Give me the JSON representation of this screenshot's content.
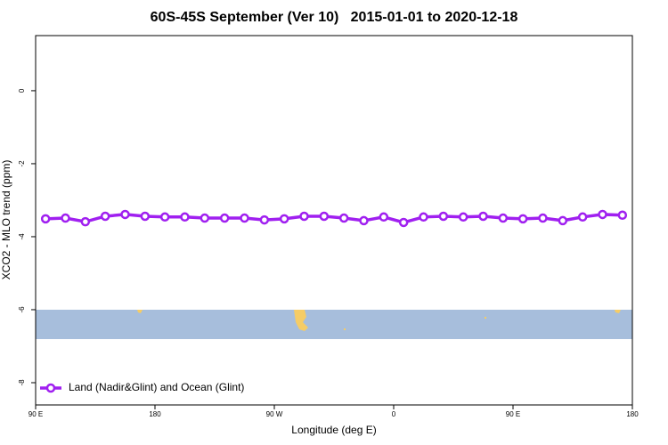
{
  "chart_data": {
    "type": "line",
    "title": "60S-45S September (Ver 10)   2015-01-01 to 2020-12-18",
    "xlabel": "Longitude (deg E)",
    "ylabel": "XCO2 - MLO trend (ppm)",
    "xlim": [
      90,
      540
    ],
    "xticks": [
      {
        "value": 90,
        "label": "90 E"
      },
      {
        "value": 180,
        "label": "180"
      },
      {
        "value": 270,
        "label": "90 W"
      },
      {
        "value": 360,
        "label": "0"
      },
      {
        "value": 450,
        "label": "90 E"
      },
      {
        "value": 540,
        "label": "180"
      }
    ],
    "ylim": [
      -8.61,
      1.51
    ],
    "yticks": [
      0,
      -2,
      -4,
      -6,
      -8
    ],
    "legend": "bottom-left",
    "x": [
      97.5,
      112.5,
      127.5,
      142.5,
      157.5,
      172.5,
      187.5,
      202.5,
      217.5,
      232.5,
      247.5,
      262.5,
      277.5,
      292.5,
      307.5,
      322.5,
      337.5,
      352.5,
      367.5,
      382.5,
      397.5,
      412.5,
      427.5,
      442.5,
      457.5,
      472.5,
      487.5,
      502.5,
      517.5,
      532.5
    ],
    "series": [
      {
        "name": "Land (Nadir&Glint) and Ocean (Glint)",
        "color": "#a020f0",
        "values": [
          -3.51,
          -3.49,
          -3.59,
          -3.44,
          -3.39,
          -3.44,
          -3.46,
          -3.46,
          -3.49,
          -3.49,
          -3.49,
          -3.54,
          -3.51,
          -3.44,
          -3.44,
          -3.49,
          -3.56,
          -3.46,
          -3.61,
          -3.46,
          -3.44,
          -3.46,
          -3.44,
          -3.49,
          -3.51,
          -3.49,
          -3.56,
          -3.46,
          -3.39,
          -3.41
        ]
      }
    ]
  }
}
